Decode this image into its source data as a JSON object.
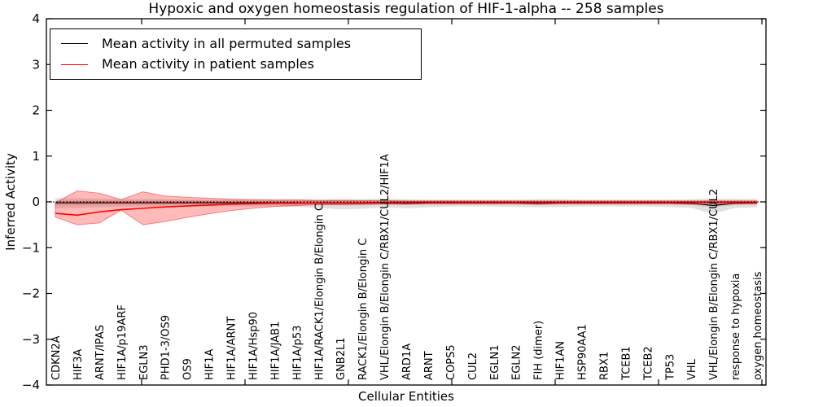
{
  "title": "Hypoxic and oxygen homeostasis regulation of HIF-1-alpha -- 258 samples",
  "legend": {
    "items": [
      {
        "label": "Mean activity in all permuted samples",
        "color": "#000000"
      },
      {
        "label": "Mean activity in patient samples",
        "color": "#ff0000"
      }
    ],
    "position": "upper left"
  },
  "axes": {
    "xlabel": "Cellular Entities",
    "ylabel": "Inferred Activity"
  },
  "colors": {
    "permuted_line": "#000000",
    "patient_line": "#ff0000",
    "patient_band_fill": "rgba(255,0,0,0.27)",
    "patient_band_edge": "rgba(255,0,0,0.45)",
    "permuted_band_outer": "rgba(0,0,0,0.12)",
    "permuted_band_inner": "rgba(0,0,0,0.10)",
    "zero_line": "#000000",
    "frame": "#000000"
  },
  "chart_data": {
    "type": "line",
    "title": "Hypoxic and oxygen homeostasis regulation of HIF-1-alpha -- 258 samples",
    "xlabel": "Cellular Entities",
    "ylabel": "Inferred Activity",
    "ylim": [
      -4,
      4
    ],
    "yticks": [
      4,
      3,
      2,
      1,
      0,
      -1,
      -2,
      -3,
      -4
    ],
    "ytick_labels": [
      "4",
      "3",
      "2",
      "1",
      "0",
      "−1",
      "−2",
      "−3",
      "−4"
    ],
    "grid": false,
    "legend_position": "upper left",
    "zero_line": 0,
    "categories": [
      "CDKN2A",
      "HIF3A",
      "ARNT/IPAS",
      "HIF1A/p19ARF",
      "EGLN3",
      "PHD1-3/OS9",
      "OS9",
      "HIF1A",
      "HIF1A/ARNT",
      "HIF1A/Hsp90",
      "HIF1A/JAB1",
      "HIF1A/p53",
      "HIF1A/RACK1/Elongin B/Elongin C",
      "GNB2L1",
      "RACK1/Elongin B/Elongin C",
      "VHL/Elongin B/Elongin C/RBX1/CUL2/HIF1A",
      "ARD1A",
      "ARNT",
      "COPS5",
      "CUL2",
      "EGLN1",
      "EGLN2",
      "FIH (dimer)",
      "HIF1AN",
      "HSP90AA1",
      "RBX1",
      "TCEB1",
      "TCEB2",
      "TP53",
      "VHL",
      "VHL/Elongin B/Elongin C/RBX1/CUL2",
      "response to hypoxia",
      "oxygen homeostasis"
    ],
    "series": [
      {
        "name": "Mean activity in all permuted samples",
        "color": "#000000",
        "values": [
          -0.02,
          -0.02,
          -0.02,
          -0.02,
          -0.02,
          -0.02,
          -0.02,
          -0.02,
          -0.02,
          -0.02,
          -0.02,
          -0.02,
          -0.03,
          -0.03,
          -0.03,
          -0.02,
          -0.03,
          -0.02,
          -0.02,
          -0.02,
          -0.02,
          -0.02,
          -0.03,
          -0.02,
          -0.02,
          -0.02,
          -0.02,
          -0.02,
          -0.02,
          -0.03,
          -0.08,
          -0.03,
          -0.02
        ]
      },
      {
        "name": "Mean activity in patient samples",
        "color": "#ff0000",
        "values": [
          -0.25,
          -0.29,
          -0.22,
          -0.17,
          -0.14,
          -0.11,
          -0.09,
          -0.07,
          -0.05,
          -0.04,
          -0.03,
          -0.03,
          -0.02,
          -0.02,
          -0.02,
          -0.01,
          -0.01,
          -0.01,
          -0.01,
          -0.01,
          -0.01,
          -0.01,
          -0.01,
          -0.01,
          -0.01,
          -0.01,
          -0.01,
          -0.01,
          -0.01,
          -0.01,
          -0.01,
          -0.01,
          -0.01
        ]
      }
    ],
    "bands": [
      {
        "name": "permuted-samples-range-outer",
        "fill": "rgba(0,0,0,0.12)",
        "hi": [
          0.08,
          0.08,
          0.07,
          0.06,
          0.06,
          0.06,
          0.05,
          0.05,
          0.05,
          0.05,
          0.05,
          0.06,
          0.06,
          0.07,
          0.06,
          0.07,
          0.06,
          0.05,
          0.05,
          0.05,
          0.05,
          0.05,
          0.06,
          0.06,
          0.05,
          0.05,
          0.05,
          0.05,
          0.05,
          0.06,
          0.07,
          0.07,
          0.06
        ],
        "lo": [
          -0.14,
          -0.13,
          -0.12,
          -0.11,
          -0.1,
          -0.1,
          -0.1,
          -0.1,
          -0.1,
          -0.1,
          -0.1,
          -0.11,
          -0.13,
          -0.16,
          -0.15,
          -0.12,
          -0.14,
          -0.12,
          -0.1,
          -0.1,
          -0.1,
          -0.11,
          -0.12,
          -0.11,
          -0.1,
          -0.1,
          -0.1,
          -0.1,
          -0.11,
          -0.13,
          -0.26,
          -0.13,
          -0.12
        ]
      },
      {
        "name": "permuted-samples-range-inner",
        "fill": "rgba(0,0,0,0.10)",
        "hi": [
          0.03,
          0.03,
          0.03,
          0.03,
          0.03,
          0.03,
          0.03,
          0.03,
          0.03,
          0.03,
          0.03,
          0.03,
          0.03,
          0.03,
          0.03,
          0.03,
          0.03,
          0.03,
          0.03,
          0.03,
          0.03,
          0.03,
          0.03,
          0.03,
          0.03,
          0.03,
          0.03,
          0.03,
          0.03,
          0.03,
          0.03,
          0.03,
          0.03
        ],
        "lo": [
          -0.07,
          -0.07,
          -0.06,
          -0.06,
          -0.06,
          -0.06,
          -0.06,
          -0.06,
          -0.06,
          -0.06,
          -0.06,
          -0.06,
          -0.07,
          -0.08,
          -0.08,
          -0.06,
          -0.07,
          -0.06,
          -0.06,
          -0.06,
          -0.06,
          -0.06,
          -0.07,
          -0.06,
          -0.06,
          -0.06,
          -0.06,
          -0.06,
          -0.06,
          -0.07,
          -0.12,
          -0.07,
          -0.06
        ]
      },
      {
        "name": "patient-samples-range",
        "fill": "rgba(255,0,0,0.27)",
        "edge": "rgba(255,0,0,0.45)",
        "hi": [
          -0.02,
          0.24,
          0.19,
          0.05,
          0.22,
          0.13,
          0.1,
          0.08,
          0.06,
          0.05,
          0.04,
          0.04,
          0.03,
          0.03,
          0.03,
          0.03,
          0.02,
          0.02,
          0.02,
          0.02,
          0.02,
          0.02,
          0.02,
          0.02,
          0.02,
          0.02,
          0.02,
          0.02,
          0.02,
          0.02,
          0.02,
          0.02,
          0.02
        ],
        "lo": [
          -0.33,
          -0.5,
          -0.46,
          -0.18,
          -0.5,
          -0.43,
          -0.34,
          -0.26,
          -0.19,
          -0.14,
          -0.1,
          -0.08,
          -0.06,
          -0.06,
          -0.05,
          -0.05,
          -0.05,
          -0.04,
          -0.04,
          -0.04,
          -0.04,
          -0.04,
          -0.05,
          -0.04,
          -0.04,
          -0.04,
          -0.04,
          -0.04,
          -0.04,
          -0.05,
          -0.05,
          -0.04,
          -0.04
        ]
      }
    ]
  }
}
